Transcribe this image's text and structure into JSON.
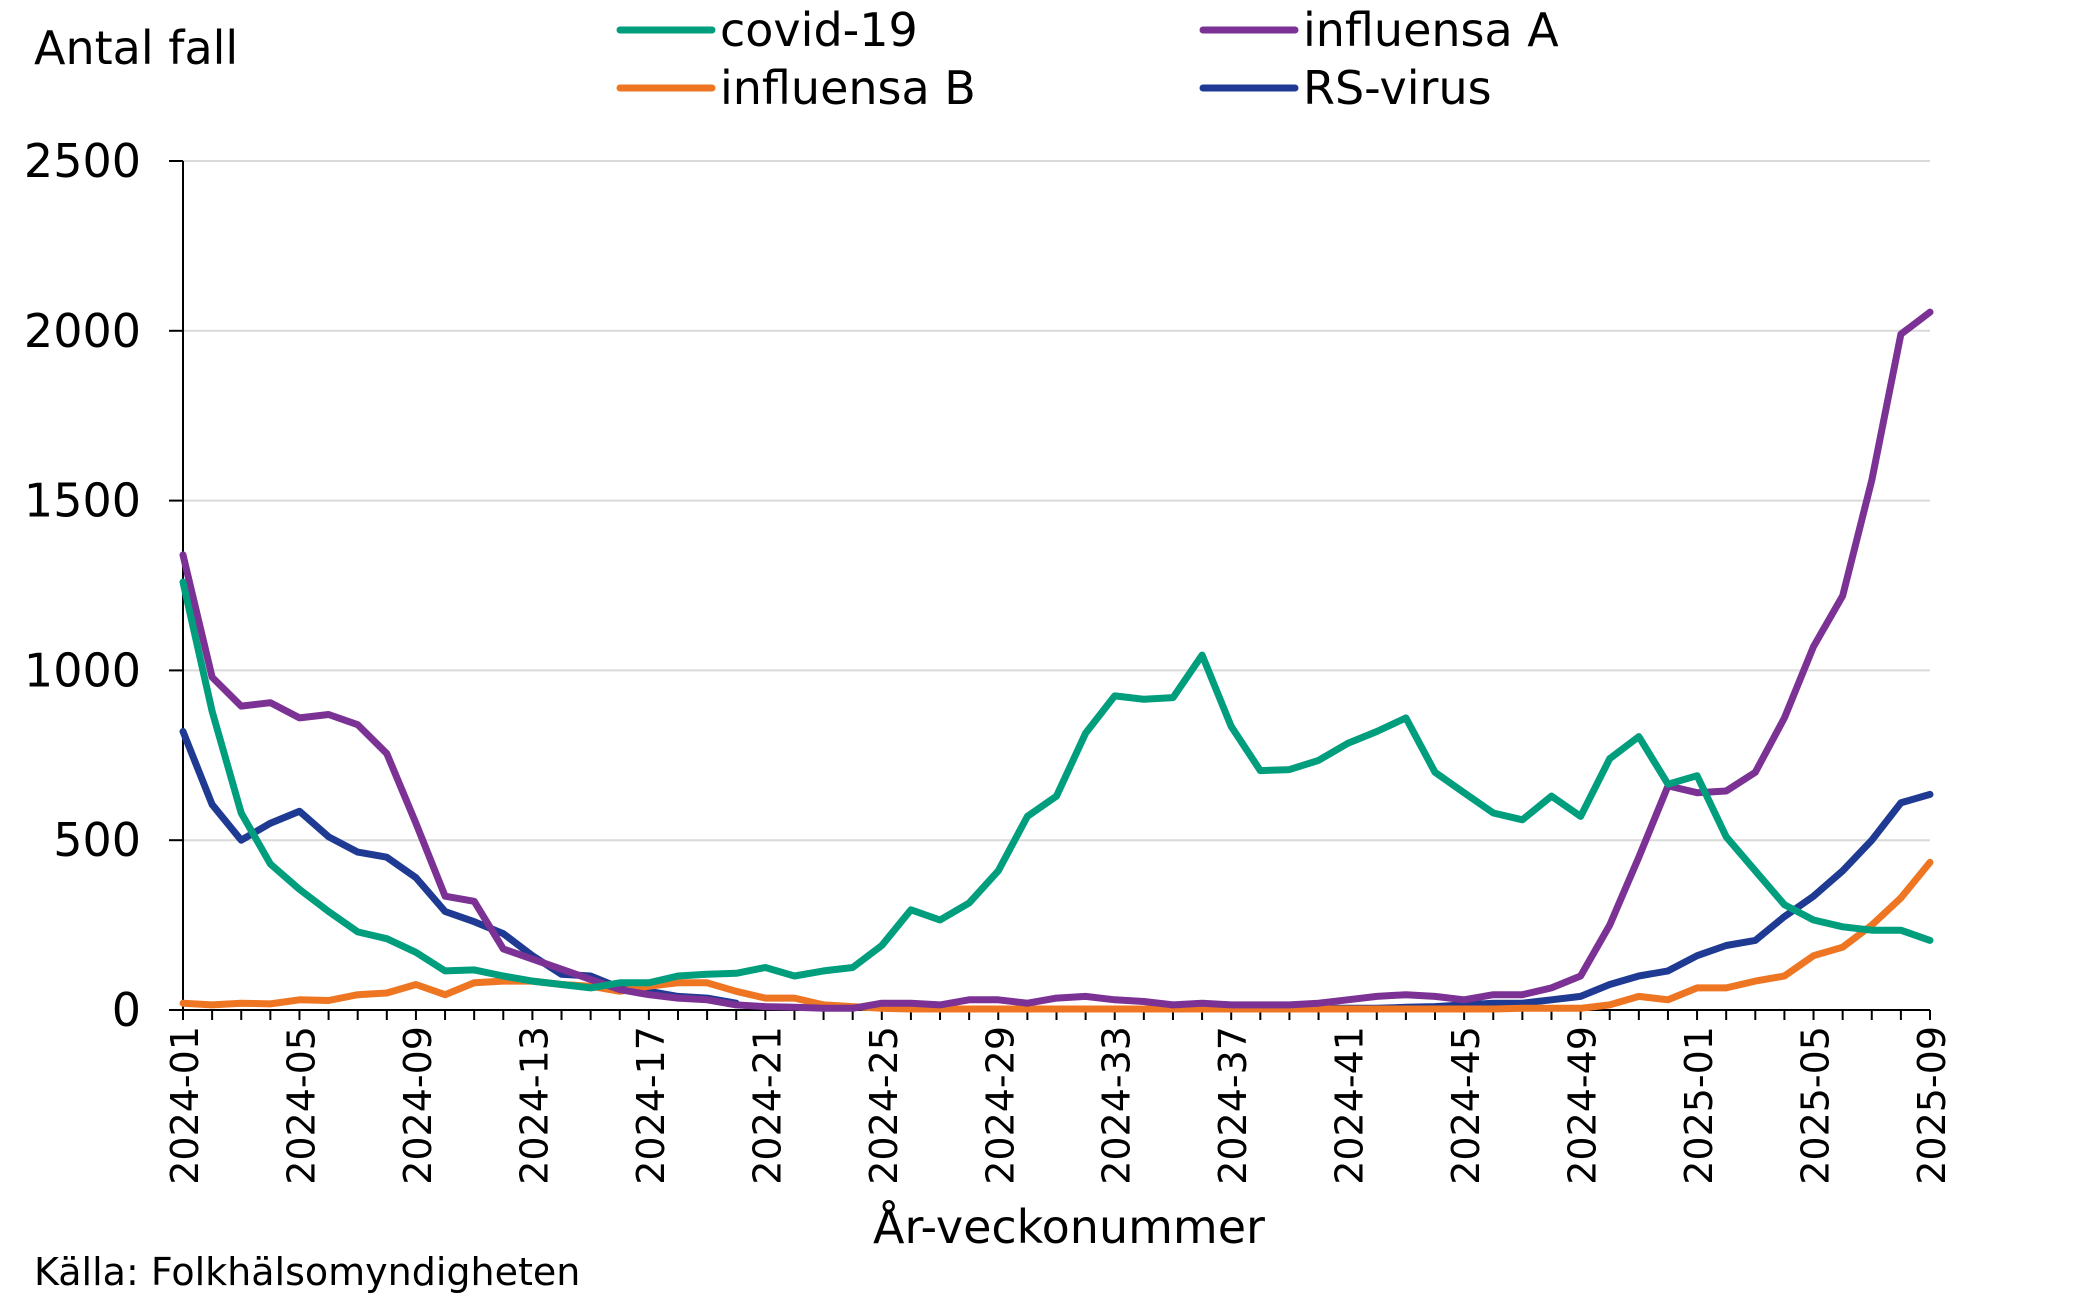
{
  "chart_data": {
    "type": "line",
    "ylabel": "Antal fall",
    "xlabel": "År-veckonummer",
    "source": "Källa: Folkhälsomyndigheten",
    "ylim": [
      0,
      2500
    ],
    "yticks": [
      0,
      500,
      1000,
      1500,
      2000,
      2500
    ],
    "grid": true,
    "legend_position": "top",
    "x": [
      "2024-01",
      "2024-02",
      "2024-03",
      "2024-04",
      "2024-05",
      "2024-06",
      "2024-07",
      "2024-08",
      "2024-09",
      "2024-10",
      "2024-11",
      "2024-12",
      "2024-13",
      "2024-14",
      "2024-15",
      "2024-16",
      "2024-17",
      "2024-18",
      "2024-19",
      "2024-20",
      "2024-21",
      "2024-22",
      "2024-23",
      "2024-24",
      "2024-25",
      "2024-26",
      "2024-27",
      "2024-28",
      "2024-29",
      "2024-30",
      "2024-31",
      "2024-32",
      "2024-33",
      "2024-34",
      "2024-35",
      "2024-36",
      "2024-37",
      "2024-38",
      "2024-39",
      "2024-40",
      "2024-41",
      "2024-42",
      "2024-43",
      "2024-44",
      "2024-45",
      "2024-46",
      "2024-47",
      "2024-48",
      "2024-49",
      "2024-50",
      "2024-51",
      "2024-52",
      "2025-01",
      "2025-02",
      "2025-03",
      "2025-04",
      "2025-05",
      "2025-06",
      "2025-07",
      "2025-08",
      "2025-09"
    ],
    "xtick_labels": [
      "2024-01",
      "2024-05",
      "2024-09",
      "2024-13",
      "2024-17",
      "2024-21",
      "2024-25",
      "2024-29",
      "2024-33",
      "2024-37",
      "2024-41",
      "2024-45",
      "2024-49",
      "2025-01",
      "2025-05",
      "2025-09"
    ],
    "series": [
      {
        "name": "covid-19",
        "color": "#009E7D",
        "values": [
          1260,
          880,
          580,
          430,
          355,
          290,
          230,
          210,
          170,
          115,
          118,
          100,
          85,
          75,
          65,
          80,
          80,
          100,
          105,
          108,
          125,
          100,
          115,
          125,
          190,
          295,
          265,
          315,
          410,
          570,
          630,
          815,
          925,
          915,
          920,
          1045,
          835,
          705,
          708,
          735,
          785,
          820,
          860,
          700,
          640,
          580,
          560,
          630,
          570,
          740,
          805,
          665,
          690,
          510,
          410,
          310,
          265,
          245,
          235,
          235,
          205
        ]
      },
      {
        "name": "influensa A",
        "color": "#7B3294",
        "values": [
          1340,
          980,
          895,
          905,
          860,
          870,
          840,
          755,
          550,
          335,
          320,
          180,
          150,
          120,
          90,
          60,
          45,
          35,
          30,
          15,
          10,
          8,
          5,
          5,
          20,
          20,
          15,
          30,
          30,
          20,
          35,
          40,
          30,
          25,
          15,
          20,
          15,
          15,
          15,
          20,
          30,
          40,
          45,
          40,
          30,
          45,
          45,
          65,
          100,
          250,
          450,
          660,
          640,
          645,
          700,
          860,
          1070,
          1220,
          1560,
          1990,
          2055
        ]
      },
      {
        "name": "influensa B",
        "color": "#EE7623",
        "values": [
          20,
          15,
          20,
          18,
          30,
          28,
          45,
          50,
          75,
          45,
          80,
          85,
          85,
          75,
          70,
          55,
          70,
          80,
          80,
          55,
          35,
          35,
          15,
          10,
          5,
          3,
          3,
          3,
          3,
          3,
          3,
          3,
          3,
          3,
          3,
          3,
          3,
          3,
          3,
          3,
          3,
          3,
          3,
          3,
          3,
          3,
          5,
          5,
          5,
          15,
          40,
          30,
          65,
          65,
          85,
          100,
          160,
          185,
          250,
          330,
          435
        ]
      },
      {
        "name": "RS-virus",
        "color": "#1F3A93",
        "values": [
          820,
          605,
          500,
          550,
          585,
          510,
          465,
          450,
          390,
          290,
          260,
          225,
          160,
          105,
          100,
          65,
          55,
          40,
          35,
          20,
          null,
          null,
          null,
          null,
          null,
          null,
          null,
          null,
          null,
          null,
          null,
          null,
          null,
          null,
          null,
          null,
          null,
          null,
          null,
          5,
          5,
          5,
          8,
          10,
          15,
          20,
          20,
          30,
          40,
          75,
          100,
          115,
          160,
          190,
          205,
          275,
          335,
          410,
          500,
          610,
          635
        ]
      }
    ]
  }
}
